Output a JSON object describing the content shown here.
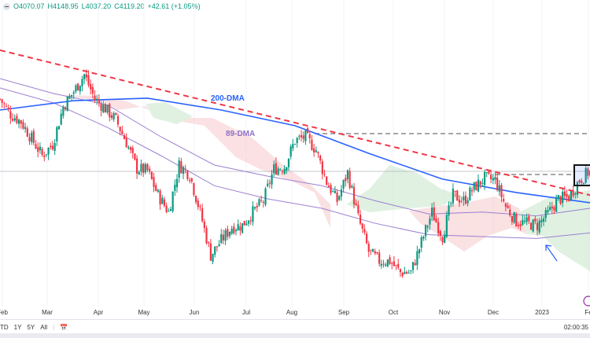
{
  "legend": {
    "open": "O4070.07",
    "high": "H4148.95",
    "low": "L4037.20",
    "close": "C4119.20",
    "change": "+42.61 (+1.05%)"
  },
  "bottom_bar": {
    "ranges": [
      "TD",
      "1Y",
      "5Y",
      "All"
    ],
    "clock": "02:00:35"
  },
  "colors": {
    "up": "#089981",
    "down": "#f23645",
    "dma200": "#2962ff",
    "dma89": "#9c7fd1",
    "trend": "#f23645"
  },
  "chart_data": {
    "type": "candlestick",
    "title": "",
    "x_ticks": [
      "Feb",
      "Mar",
      "Apr",
      "May",
      "Jun",
      "Jul",
      "Aug",
      "Sep",
      "Oct",
      "Nov",
      "Dec",
      "2023",
      "Fe"
    ],
    "weekly_closes": [
      4500,
      4420,
      4380,
      4290,
      4200,
      4260,
      4460,
      4540,
      4630,
      4500,
      4450,
      4390,
      4270,
      4130,
      4120,
      3990,
      3900,
      4150,
      4100,
      3900,
      3670,
      3750,
      3820,
      3830,
      3900,
      3960,
      4130,
      4140,
      4280,
      4300,
      4230,
      4060,
      3960,
      4110,
      3870,
      3690,
      3640,
      3640,
      3580,
      3580,
      3740,
      3900,
      3770,
      3990,
      3960,
      4030,
      4080,
      4070,
      3930,
      3850,
      3840,
      3830,
      3890,
      3970,
      3980,
      4070,
      4120
    ],
    "last_close": 4119.2,
    "ylim": [
      3400,
      4870
    ],
    "dma200": {
      "label": "200-DMA",
      "values": [
        4442,
        4492,
        4505,
        4442,
        4359,
        4212,
        4075,
        4004,
        3950
      ]
    },
    "dma89": {
      "label": "89-DMA",
      "values": [
        4609,
        4530,
        4470,
        4300,
        4150,
        4090,
        4040,
        3960,
        3890,
        3900,
        3880,
        3920
      ]
    },
    "dma_lower": {
      "values": [
        4560,
        4480,
        4350,
        4200,
        4040,
        3970,
        3920,
        3840,
        3780,
        3770,
        3760,
        3790
      ]
    },
    "trendline": [
      4760,
      3990
    ],
    "resistance_levels": [
      4325,
      4100
    ],
    "annotations": [
      "200-DMA",
      "89-DMA"
    ]
  }
}
